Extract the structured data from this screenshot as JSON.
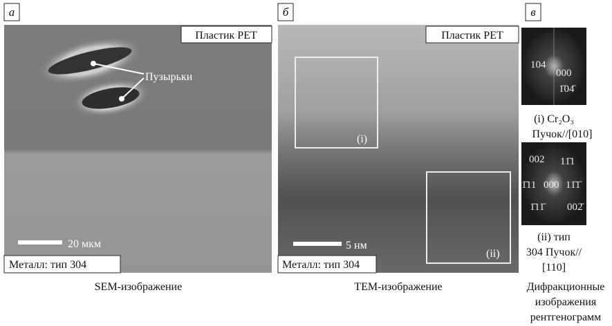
{
  "panels": [
    {
      "label": "а",
      "overlays": [
        "Пластик PET",
        "Пузырьки",
        "20 мкм",
        "Металл: тип 304"
      ],
      "caption": "SEM-изображение"
    },
    {
      "label": "б",
      "overlays": [
        "Пластик PET",
        "(i)",
        "(ii)",
        "5 нм",
        "Металл: тип 304"
      ],
      "caption": "TEM-изображение"
    },
    {
      "label": "в",
      "patterns": [
        {
          "indices": [
            "104",
            "000",
            "1̄04̄"
          ],
          "caption": [
            "(i) Cr₂O₃",
            "Пучок//[010]"
          ]
        },
        {
          "indices": [
            "002",
            "11̄1",
            "1̄11",
            "000",
            "11̄1̄",
            "1̄11̄",
            "002̄"
          ],
          "caption": [
            "(ii) тип",
            "304 Пучок//",
            "[110]"
          ]
        }
      ],
      "caption": [
        "Дифракционные",
        "изображения",
        "рентгенограмм"
      ]
    }
  ]
}
